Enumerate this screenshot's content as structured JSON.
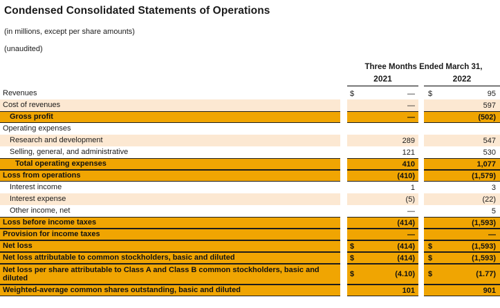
{
  "header": {
    "title": "Condensed Consolidated Statements of Operations",
    "note_units": "(in millions, except per share amounts)",
    "note_audit": "(unaudited)"
  },
  "colors": {
    "orange": "#F0A502",
    "peach": "#FCE8D2",
    "border": "#1C1C1C"
  },
  "table": {
    "period_header": "Three Months Ended March 31,",
    "columns": [
      "2021",
      "2022"
    ],
    "rows": [
      {
        "label": "Revenues",
        "dollar": true,
        "v2021": "—",
        "v2022": "95",
        "style": "white",
        "indent": 0
      },
      {
        "label": "Cost of revenues",
        "dollar": false,
        "v2021": "—",
        "v2022": "597",
        "style": "peach",
        "indent": 0
      },
      {
        "label": "Gross profit",
        "dollar": false,
        "v2021": "—",
        "v2022": "(502)",
        "style": "orange",
        "indent": 1
      },
      {
        "label": "Operating expenses",
        "dollar": false,
        "v2021": "",
        "v2022": "",
        "style": "white",
        "indent": 0
      },
      {
        "label": "Research and development",
        "dollar": false,
        "v2021": "289",
        "v2022": "547",
        "style": "peach",
        "indent": 1
      },
      {
        "label": "Selling, general, and administrative",
        "dollar": false,
        "v2021": "121",
        "v2022": "530",
        "style": "white",
        "indent": 1
      },
      {
        "label": "Total operating expenses",
        "dollar": false,
        "v2021": "410",
        "v2022": "1,077",
        "style": "orange",
        "indent": 2
      },
      {
        "label": "Loss from operations",
        "dollar": false,
        "v2021": "(410)",
        "v2022": "(1,579)",
        "style": "orange",
        "indent": 0
      },
      {
        "label": "Interest income",
        "dollar": false,
        "v2021": "1",
        "v2022": "3",
        "style": "white",
        "indent": 1
      },
      {
        "label": "Interest expense",
        "dollar": false,
        "v2021": "(5)",
        "v2022": "(22)",
        "style": "peach",
        "indent": 1
      },
      {
        "label": "Other income, net",
        "dollar": false,
        "v2021": "—",
        "v2022": "5",
        "style": "white",
        "indent": 1
      },
      {
        "label": "Loss before income taxes",
        "dollar": false,
        "v2021": "(414)",
        "v2022": "(1,593)",
        "style": "orange",
        "indent": 0
      },
      {
        "label": "Provision for income taxes",
        "dollar": false,
        "v2021": "—",
        "v2022": "—",
        "style": "orange",
        "indent": 0
      },
      {
        "label": "Net loss",
        "dollar": true,
        "v2021": "(414)",
        "v2022": "(1,593)",
        "style": "orange",
        "indent": 0
      },
      {
        "label": "Net loss attributable to common stockholders, basic and diluted",
        "dollar": true,
        "v2021": "(414)",
        "v2022": "(1,593)",
        "style": "orange",
        "indent": 0
      },
      {
        "label": "Net loss per share attributable to Class A and Class B common stockholders, basic and diluted",
        "dollar": true,
        "v2021": "(4.10)",
        "v2022": "(1.77)",
        "style": "orange",
        "indent": 0,
        "tall": true
      },
      {
        "label": "Weighted-average common shares outstanding, basic and diluted",
        "dollar": false,
        "v2021": "101",
        "v2022": "901",
        "style": "orange",
        "indent": 0
      }
    ]
  }
}
